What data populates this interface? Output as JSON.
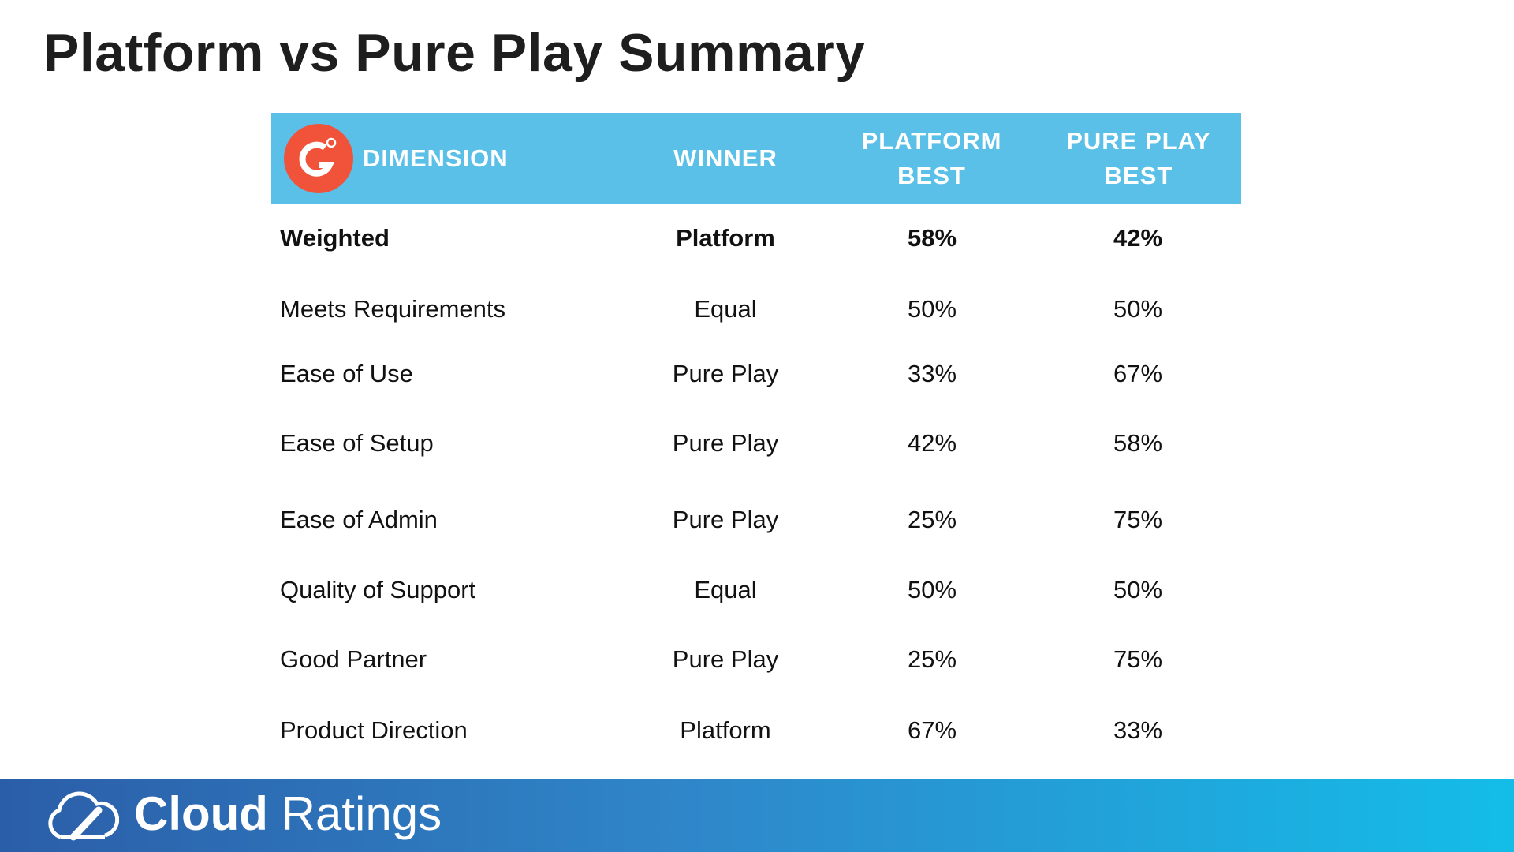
{
  "header": {
    "title": "Platform vs Pure Play Summary"
  },
  "table": {
    "columns": [
      "DIMENSION",
      "WINNER",
      "PLATFORM BEST",
      "PURE PLAY BEST"
    ],
    "rows": [
      [
        "Weighted",
        "Platform",
        "58%",
        "42%"
      ],
      [
        "Meets Requirements",
        "Equal",
        "50%",
        "50%"
      ],
      [
        "Ease of Use",
        "Pure Play",
        "33%",
        "67%"
      ],
      [
        "Ease of Setup",
        "Pure Play",
        "42%",
        "58%"
      ],
      [
        "Ease of Admin",
        "Pure Play",
        "25%",
        "75%"
      ],
      [
        "Quality of Support",
        "Equal",
        "50%",
        "50%"
      ],
      [
        "Good Partner",
        "Pure Play",
        "25%",
        "75%"
      ],
      [
        "Product Direction",
        "Platform",
        "67%",
        "33%"
      ]
    ]
  },
  "footer": {
    "brand_bold": "Cloud",
    "brand_light": "Ratings"
  }
}
